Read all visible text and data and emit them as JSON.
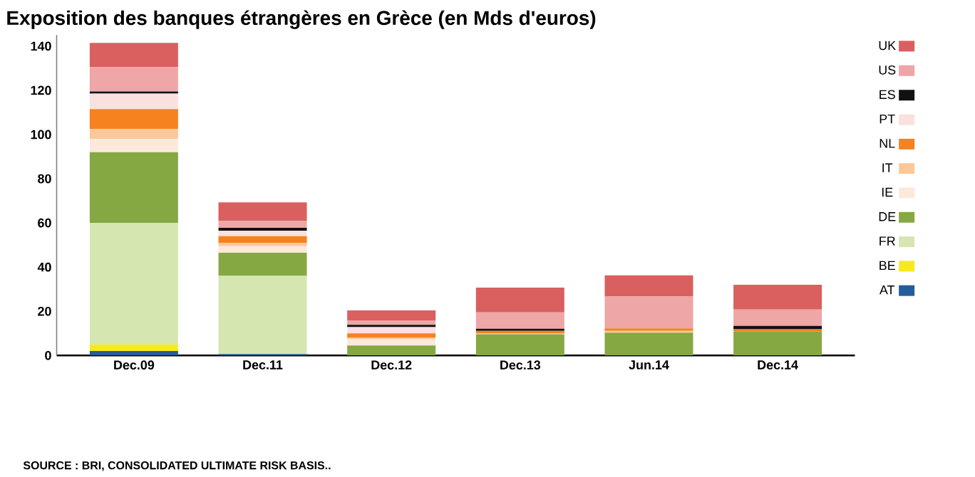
{
  "chart_data": {
    "type": "bar",
    "stacked": true,
    "title": "Exposition des banques étrangères en Grèce (en Mds d'euros)",
    "annotations": [
      "SOURCE : BRI, CONSOLIDATED ULTIMATE RISK BASIS.."
    ],
    "categories": [
      "Dec.09",
      "Dec.11",
      "Dec.12",
      "Dec.13",
      "Jun.14",
      "Dec.14"
    ],
    "series": [
      {
        "name": "AT",
        "color": "#245d9b",
        "values": [
          2,
          0.7,
          0,
          0,
          0,
          0
        ]
      },
      {
        "name": "BE",
        "color": "#f7ea1c",
        "values": [
          3,
          0.3,
          0,
          0,
          0,
          0
        ]
      },
      {
        "name": "FR",
        "color": "#d6e6b0",
        "values": [
          55,
          35,
          null,
          null,
          null,
          null
        ]
      },
      {
        "name": "DE",
        "color": "#86a843",
        "values": [
          32,
          10.5,
          4.5,
          9.6,
          10.3,
          10.8
        ]
      },
      {
        "name": "IE",
        "color": "#fde8dc",
        "values": [
          6,
          3,
          3,
          null,
          0,
          0
        ]
      },
      {
        "name": "IT",
        "color": "#fcc89a",
        "values": [
          4.5,
          1.5,
          0.5,
          0.5,
          0.8,
          0
        ]
      },
      {
        "name": "NL",
        "color": "#f5821f",
        "values": [
          9,
          3,
          2,
          1,
          1.2,
          1.1
        ]
      },
      {
        "name": "PT",
        "color": "#fbe0e0",
        "values": [
          7,
          2.5,
          2.8,
          0,
          0,
          0
        ]
      },
      {
        "name": "ES",
        "color": "#111111",
        "values": [
          1,
          1.3,
          1.1,
          1,
          0,
          1.5
        ]
      },
      {
        "name": "US",
        "color": "#eea6a6",
        "values": [
          11,
          3,
          2,
          7.4,
          14.4,
          7.4
        ]
      },
      {
        "name": "UK",
        "color": "#d9605e",
        "values": [
          11,
          8.5,
          4.5,
          11.2,
          9.6,
          11.2
        ]
      }
    ],
    "ylim": [
      0,
      145
    ],
    "yticks": [
      0,
      20,
      40,
      60,
      80,
      100,
      120,
      140
    ],
    "legend": "right",
    "grid": false
  }
}
